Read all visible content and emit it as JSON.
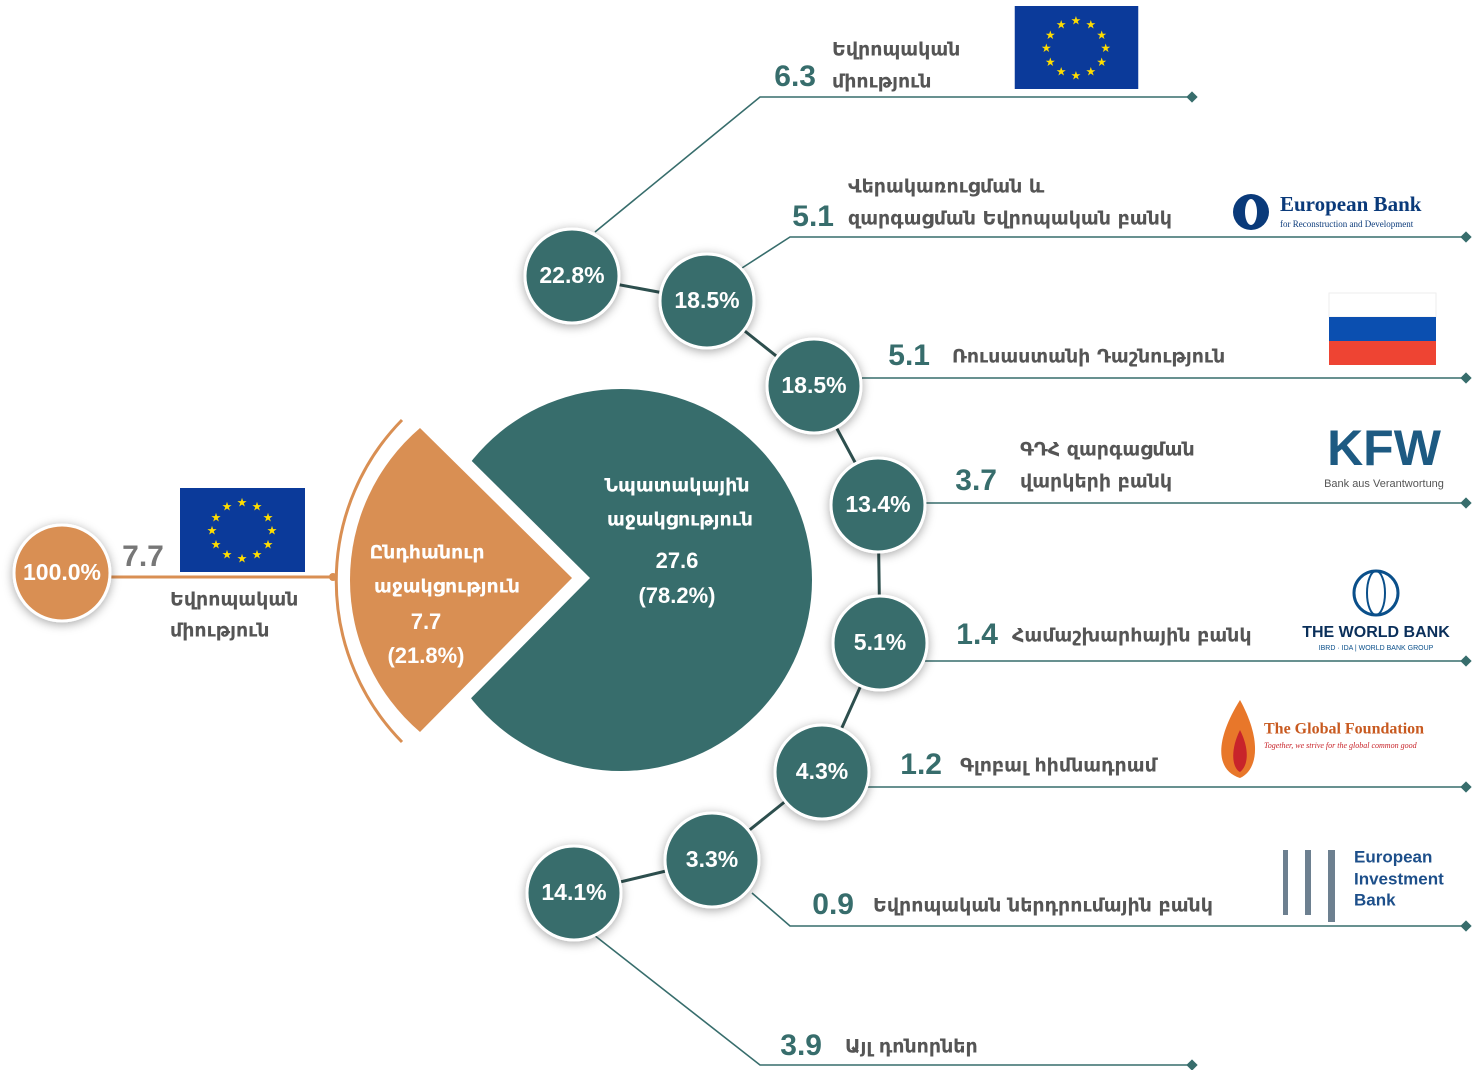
{
  "source": {
    "share": "100.0%",
    "value": "7.7",
    "name": [
      "Եվրոպական",
      "միություն"
    ]
  },
  "pie": {
    "general": {
      "label": [
        "Ընդհանուր",
        "աջակցություն"
      ],
      "value": "7.7",
      "share": "(21.8%)"
    },
    "targeted": {
      "label": [
        "Նպատակային",
        "աջակցություն"
      ],
      "value": "27.6",
      "share": "(78.2%)"
    }
  },
  "donors": [
    {
      "share": "22.8%",
      "value": "6.3",
      "name": [
        "Եվրոպական",
        "միություն"
      ]
    },
    {
      "share": "18.5%",
      "value": "5.1",
      "name": [
        "Վերակառուցման և",
        "զարգացման Եվրոպական բանկ"
      ],
      "logo": [
        "European Bank",
        "for Reconstruction and Development"
      ]
    },
    {
      "share": "18.5%",
      "value": "5.1",
      "name": [
        "Ռուսաստանի Դաշնություն"
      ]
    },
    {
      "share": "13.4%",
      "value": "3.7",
      "name": [
        "ԳԴՀ զարգացման",
        "վարկերի բանկ"
      ],
      "logo": [
        "KFW",
        "Bank aus Verantwortung"
      ]
    },
    {
      "share": "5.1%",
      "value": "1.4",
      "name": [
        "Համաշխարհային բանկ"
      ],
      "logo": [
        "THE WORLD BANK",
        "IBRD · IDA | WORLD BANK GROUP"
      ]
    },
    {
      "share": "4.3%",
      "value": "1.2",
      "name": [
        "Գլոբալ հիմնադրամ"
      ],
      "logo": [
        "The Global Foundation",
        "Together, we strive for the global common good"
      ]
    },
    {
      "share": "3.3%",
      "value": "0.9",
      "name": [
        "Եվրոպական ներդրումային բանկ"
      ],
      "logo": [
        "European",
        "Investment",
        "Bank"
      ]
    },
    {
      "share": "14.1%",
      "value": "3.9",
      "name": [
        "Այլ դոնորներ"
      ]
    }
  ]
}
